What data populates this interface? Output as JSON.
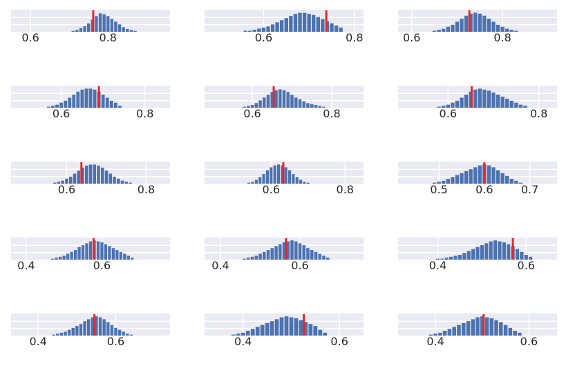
{
  "chart_data": [
    {
      "type": "bar",
      "title": "",
      "xlabel": "",
      "ylabel": "",
      "xlim": [
        0.55,
        0.96
      ],
      "xticks": [
        0.6,
        0.8
      ],
      "x": [
        0.71,
        0.72,
        0.73,
        0.74,
        0.75,
        0.76,
        0.77,
        0.78,
        0.79,
        0.8,
        0.81,
        0.82,
        0.83,
        0.84,
        0.85,
        0.86,
        0.87
      ],
      "values": [
        1,
        2,
        4,
        6,
        9,
        13,
        17,
        20,
        19,
        17,
        14,
        11,
        8,
        5,
        3,
        2,
        1
      ],
      "ylim": [
        0,
        24
      ],
      "marker": 0.762,
      "grid": true
    },
    {
      "type": "bar",
      "title": "",
      "xlabel": "",
      "ylabel": "",
      "xlim": [
        0.47,
        0.82
      ],
      "xticks": [
        0.6,
        0.8
      ],
      "x": [
        0.56,
        0.57,
        0.58,
        0.59,
        0.6,
        0.61,
        0.62,
        0.63,
        0.64,
        0.65,
        0.66,
        0.67,
        0.68,
        0.69,
        0.7,
        0.71,
        0.72,
        0.73,
        0.74,
        0.75,
        0.76,
        0.77
      ],
      "values": [
        1,
        1,
        2,
        3,
        4,
        5,
        7,
        9,
        11,
        13,
        15,
        17,
        18,
        18,
        17,
        16,
        14,
        12,
        10,
        8,
        6,
        4
      ],
      "ylim": [
        0,
        21
      ],
      "marker": 0.738,
      "grid": true
    },
    {
      "type": "bar",
      "title": "",
      "xlabel": "",
      "ylabel": "",
      "xlim": [
        0.57,
        0.92
      ],
      "xticks": [
        0.6,
        0.8
      ],
      "x": [
        0.65,
        0.66,
        0.67,
        0.68,
        0.69,
        0.7,
        0.71,
        0.72,
        0.73,
        0.74,
        0.75,
        0.76,
        0.77,
        0.78,
        0.79,
        0.8,
        0.81,
        0.82,
        0.83
      ],
      "values": [
        1,
        2,
        3,
        5,
        7,
        10,
        13,
        16,
        18,
        19,
        18,
        16,
        13,
        10,
        7,
        5,
        3,
        2,
        1
      ],
      "ylim": [
        0,
        22
      ],
      "marker": 0.727,
      "grid": true
    },
    {
      "type": "bar",
      "title": "",
      "xlabel": "",
      "ylabel": "",
      "xlim": [
        0.48,
        0.86
      ],
      "xticks": [
        0.6,
        0.8
      ],
      "x": [
        0.57,
        0.58,
        0.59,
        0.6,
        0.61,
        0.62,
        0.63,
        0.64,
        0.65,
        0.66,
        0.67,
        0.68,
        0.69,
        0.7,
        0.71,
        0.72,
        0.73,
        0.74
      ],
      "values": [
        1,
        2,
        3,
        5,
        7,
        10,
        13,
        16,
        18,
        19,
        19,
        18,
        16,
        13,
        10,
        7,
        5,
        2
      ],
      "ylim": [
        0,
        22
      ],
      "marker": 0.69,
      "grid": true
    },
    {
      "type": "bar",
      "title": "",
      "xlabel": "",
      "ylabel": "",
      "xlim": [
        0.48,
        0.88
      ],
      "xticks": [
        0.6,
        0.8
      ],
      "x": [
        0.58,
        0.59,
        0.6,
        0.61,
        0.62,
        0.63,
        0.64,
        0.65,
        0.66,
        0.67,
        0.68,
        0.69,
        0.7,
        0.71,
        0.72,
        0.73,
        0.74,
        0.75,
        0.76,
        0.77,
        0.78
      ],
      "values": [
        1,
        2,
        3,
        5,
        8,
        11,
        14,
        17,
        19,
        20,
        19,
        17,
        14,
        11,
        9,
        7,
        5,
        4,
        3,
        2,
        1
      ],
      "ylim": [
        0,
        24
      ],
      "marker": 0.654,
      "grid": true
    },
    {
      "type": "bar",
      "title": "",
      "xlabel": "",
      "ylabel": "",
      "xlim": [
        0.49,
        0.84
      ],
      "xticks": [
        0.6,
        0.8
      ],
      "x": [
        0.58,
        0.59,
        0.6,
        0.61,
        0.62,
        0.63,
        0.64,
        0.65,
        0.66,
        0.67,
        0.68,
        0.69,
        0.7,
        0.71,
        0.72,
        0.73,
        0.74,
        0.75,
        0.76,
        0.77
      ],
      "values": [
        1,
        2,
        3,
        5,
        7,
        10,
        13,
        16,
        18,
        19,
        18,
        17,
        15,
        13,
        11,
        9,
        7,
        5,
        3,
        2
      ],
      "ylim": [
        0,
        22
      ],
      "marker": 0.652,
      "grid": true
    },
    {
      "type": "bar",
      "title": "",
      "xlabel": "",
      "ylabel": "",
      "xlim": [
        0.46,
        0.86
      ],
      "xticks": [
        0.6,
        0.8
      ],
      "x": [
        0.57,
        0.58,
        0.59,
        0.6,
        0.61,
        0.62,
        0.63,
        0.64,
        0.65,
        0.66,
        0.67,
        0.68,
        0.69,
        0.7,
        0.71,
        0.72,
        0.73,
        0.74,
        0.75,
        0.76
      ],
      "values": [
        1,
        2,
        3,
        5,
        7,
        10,
        13,
        16,
        18,
        19,
        19,
        18,
        16,
        13,
        10,
        7,
        5,
        3,
        2,
        1
      ],
      "ylim": [
        0,
        22
      ],
      "marker": 0.637,
      "grid": true
    },
    {
      "type": "bar",
      "title": "",
      "xlabel": "",
      "ylabel": "",
      "xlim": [
        0.42,
        0.85
      ],
      "xticks": [
        0.6,
        0.8
      ],
      "x": [
        0.54,
        0.55,
        0.56,
        0.57,
        0.58,
        0.59,
        0.6,
        0.61,
        0.62,
        0.63,
        0.64,
        0.65,
        0.66,
        0.67,
        0.68,
        0.69,
        0.7
      ],
      "values": [
        1,
        2,
        4,
        7,
        10,
        14,
        17,
        19,
        20,
        19,
        17,
        14,
        10,
        7,
        4,
        2,
        1
      ],
      "ylim": [
        0,
        23
      ],
      "marker": 0.633,
      "grid": true
    },
    {
      "type": "bar",
      "title": "",
      "xlabel": "",
      "ylabel": "",
      "xlim": [
        0.41,
        0.76
      ],
      "xticks": [
        0.5,
        0.6,
        0.7
      ],
      "x": [
        0.49,
        0.5,
        0.51,
        0.52,
        0.53,
        0.54,
        0.55,
        0.56,
        0.57,
        0.58,
        0.59,
        0.6,
        0.61,
        0.62,
        0.63,
        0.64,
        0.65,
        0.66,
        0.67,
        0.68
      ],
      "values": [
        1,
        2,
        3,
        5,
        7,
        9,
        11,
        13,
        15,
        17,
        19,
        20,
        19,
        17,
        14,
        11,
        8,
        5,
        3,
        1
      ],
      "ylim": [
        0,
        23
      ],
      "marker": 0.6,
      "grid": true
    },
    {
      "type": "bar",
      "title": "",
      "xlabel": "",
      "ylabel": "",
      "xlim": [
        0.36,
        0.78
      ],
      "xticks": [
        0.4,
        0.6
      ],
      "x": [
        0.47,
        0.48,
        0.49,
        0.5,
        0.51,
        0.52,
        0.53,
        0.54,
        0.55,
        0.56,
        0.57,
        0.58,
        0.59,
        0.6,
        0.61,
        0.62,
        0.63,
        0.64,
        0.65,
        0.66,
        0.67,
        0.68
      ],
      "values": [
        1,
        2,
        3,
        4,
        6,
        8,
        10,
        13,
        15,
        17,
        19,
        20,
        19,
        18,
        16,
        14,
        12,
        10,
        8,
        6,
        4,
        2
      ],
      "ylim": [
        0,
        23
      ],
      "marker": 0.578,
      "grid": true
    },
    {
      "type": "bar",
      "title": "",
      "xlabel": "",
      "ylabel": "",
      "xlim": [
        0.36,
        0.76
      ],
      "xticks": [
        0.4,
        0.6
      ],
      "x": [
        0.46,
        0.47,
        0.48,
        0.49,
        0.5,
        0.51,
        0.52,
        0.53,
        0.54,
        0.55,
        0.56,
        0.57,
        0.58,
        0.59,
        0.6,
        0.61,
        0.62,
        0.63,
        0.64,
        0.65,
        0.66,
        0.67
      ],
      "values": [
        1,
        2,
        3,
        4,
        6,
        8,
        10,
        12,
        14,
        16,
        18,
        19,
        20,
        19,
        17,
        15,
        12,
        10,
        8,
        6,
        4,
        2
      ],
      "ylim": [
        0,
        23
      ],
      "marker": 0.565,
      "grid": true
    },
    {
      "type": "bar",
      "title": "",
      "xlabel": "",
      "ylabel": "",
      "xlim": [
        0.31,
        0.67
      ],
      "xticks": [
        0.4,
        0.6
      ],
      "x": [
        0.4,
        0.41,
        0.42,
        0.43,
        0.44,
        0.45,
        0.46,
        0.47,
        0.48,
        0.49,
        0.5,
        0.51,
        0.52,
        0.53,
        0.54,
        0.55,
        0.56,
        0.57,
        0.58,
        0.59,
        0.6,
        0.61
      ],
      "values": [
        1,
        1,
        2,
        3,
        4,
        5,
        7,
        9,
        11,
        13,
        15,
        17,
        19,
        20,
        19,
        18,
        16,
        14,
        11,
        8,
        5,
        3
      ],
      "ylim": [
        0,
        23
      ],
      "marker": 0.57,
      "grid": true
    },
    {
      "type": "bar",
      "title": "",
      "xlabel": "",
      "ylabel": "",
      "xlim": [
        0.33,
        0.74
      ],
      "xticks": [
        0.4,
        0.6
      ],
      "x": [
        0.44,
        0.45,
        0.46,
        0.47,
        0.48,
        0.49,
        0.5,
        0.51,
        0.52,
        0.53,
        0.54,
        0.55,
        0.56,
        0.57,
        0.58,
        0.59,
        0.6,
        0.61,
        0.62,
        0.63,
        0.64
      ],
      "values": [
        1,
        2,
        3,
        4,
        6,
        8,
        10,
        12,
        15,
        17,
        19,
        20,
        19,
        17,
        14,
        11,
        8,
        6,
        4,
        2,
        1
      ],
      "ylim": [
        0,
        23
      ],
      "marker": 0.545,
      "grid": true
    },
    {
      "type": "bar",
      "title": "",
      "xlabel": "",
      "ylabel": "",
      "xlim": [
        0.32,
        0.65
      ],
      "xticks": [
        0.4,
        0.6
      ],
      "x": [
        0.38,
        0.39,
        0.4,
        0.41,
        0.42,
        0.43,
        0.44,
        0.45,
        0.46,
        0.47,
        0.48,
        0.49,
        0.5,
        0.51,
        0.52,
        0.53,
        0.54,
        0.55,
        0.56,
        0.57
      ],
      "values": [
        1,
        2,
        3,
        5,
        7,
        9,
        11,
        13,
        15,
        17,
        19,
        20,
        19,
        18,
        16,
        14,
        12,
        10,
        6,
        3
      ],
      "ylim": [
        0,
        23
      ],
      "marker": 0.526,
      "grid": true
    },
    {
      "type": "bar",
      "title": "",
      "xlabel": "",
      "ylabel": "",
      "xlim": [
        0.32,
        0.66
      ],
      "xticks": [
        0.4,
        0.6
      ],
      "x": [
        0.39,
        0.4,
        0.41,
        0.42,
        0.43,
        0.44,
        0.45,
        0.46,
        0.47,
        0.48,
        0.49,
        0.5,
        0.51,
        0.52,
        0.53,
        0.54,
        0.55,
        0.56,
        0.57,
        0.58
      ],
      "values": [
        1,
        2,
        3,
        5,
        7,
        9,
        11,
        13,
        15,
        17,
        19,
        20,
        19,
        18,
        16,
        14,
        11,
        8,
        5,
        3
      ],
      "ylim": [
        0,
        23
      ],
      "marker": 0.503,
      "grid": true
    }
  ],
  "colors": {
    "plot_background": "#EAEAF2",
    "grid": "#FFFFFF",
    "bar": "#4C72B0",
    "marker": "#E8262A",
    "tick_text": "#262626"
  }
}
